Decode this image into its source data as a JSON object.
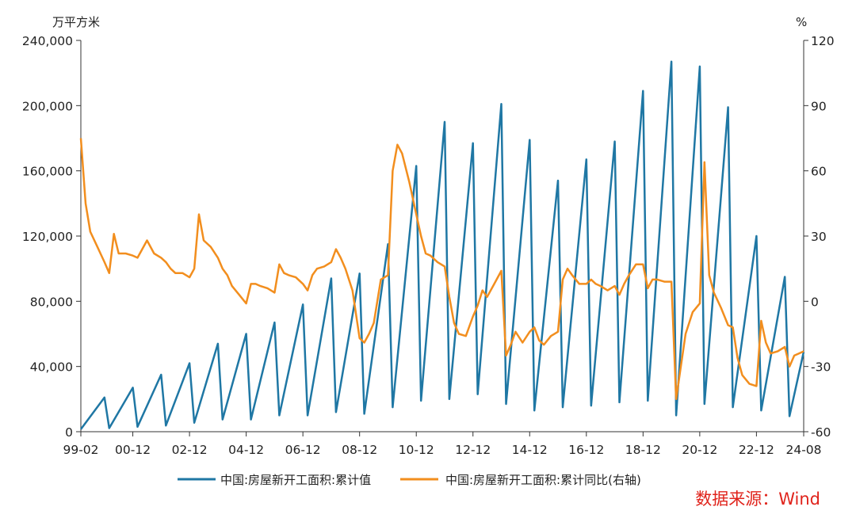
{
  "chart_data": {
    "type": "line",
    "left_unit": "万平方米",
    "right_unit": "%",
    "x_tick_labels": [
      "99-02",
      "00-12",
      "02-12",
      "04-12",
      "06-12",
      "08-12",
      "10-12",
      "12-12",
      "14-12",
      "16-12",
      "18-12",
      "20-12",
      "22-12",
      "24-08"
    ],
    "y_left": {
      "ticks": [
        0,
        40000,
        80000,
        120000,
        160000,
        200000,
        240000
      ],
      "tick_labels": [
        "0",
        "40,000",
        "80,000",
        "120,000",
        "160,000",
        "200,000",
        "240,000"
      ],
      "lim": [
        0,
        240000
      ]
    },
    "y_right": {
      "ticks": [
        -60,
        -30,
        0,
        30,
        60,
        90,
        120
      ],
      "tick_labels": [
        "-60",
        "-30",
        "0",
        "30",
        "60",
        "90",
        "120"
      ],
      "lim": [
        -60,
        120
      ]
    },
    "series": [
      {
        "name": "中国:房屋新开工面积:累计值",
        "axis": "left",
        "color": "#1f77a4",
        "points": [
          [
            "1999-02",
            1500
          ],
          [
            "1999-12",
            21000
          ],
          [
            "2000-02",
            2200
          ],
          [
            "2000-12",
            27000
          ],
          [
            "2001-02",
            3000
          ],
          [
            "2001-12",
            35000
          ],
          [
            "2002-02",
            3800
          ],
          [
            "2002-12",
            42000
          ],
          [
            "2003-02",
            5500
          ],
          [
            "2003-12",
            54000
          ],
          [
            "2004-02",
            7500
          ],
          [
            "2004-12",
            60000
          ],
          [
            "2005-02",
            7500
          ],
          [
            "2005-12",
            67000
          ],
          [
            "2006-02",
            10000
          ],
          [
            "2006-12",
            78000
          ],
          [
            "2007-02",
            10000
          ],
          [
            "2007-12",
            94000
          ],
          [
            "2008-02",
            12000
          ],
          [
            "2008-12",
            97000
          ],
          [
            "2009-02",
            11000
          ],
          [
            "2009-12",
            115000
          ],
          [
            "2010-02",
            15000
          ],
          [
            "2010-12",
            163000
          ],
          [
            "2011-02",
            19000
          ],
          [
            "2011-12",
            190000
          ],
          [
            "2012-02",
            20000
          ],
          [
            "2012-12",
            177000
          ],
          [
            "2013-02",
            23000
          ],
          [
            "2013-12",
            201000
          ],
          [
            "2014-02",
            17000
          ],
          [
            "2014-12",
            179000
          ],
          [
            "2015-02",
            13000
          ],
          [
            "2015-12",
            154000
          ],
          [
            "2016-02",
            15000
          ],
          [
            "2016-12",
            167000
          ],
          [
            "2017-02",
            16000
          ],
          [
            "2017-12",
            178000
          ],
          [
            "2018-02",
            18000
          ],
          [
            "2018-12",
            209000
          ],
          [
            "2019-02",
            19000
          ],
          [
            "2019-12",
            227000
          ],
          [
            "2020-02",
            10000
          ],
          [
            "2020-12",
            224000
          ],
          [
            "2021-02",
            17000
          ],
          [
            "2021-12",
            199000
          ],
          [
            "2022-02",
            15000
          ],
          [
            "2022-12",
            120000
          ],
          [
            "2023-02",
            13000
          ],
          [
            "2023-12",
            95000
          ],
          [
            "2024-02",
            9500
          ],
          [
            "2024-08",
            49000
          ]
        ]
      },
      {
        "name": "中国:房屋新开工面积:累计同比(右轴)",
        "axis": "right",
        "color": "#f28e1e",
        "points": [
          [
            "1999-02",
            75
          ],
          [
            "1999-04",
            45
          ],
          [
            "1999-06",
            32
          ],
          [
            "1999-09",
            25
          ],
          [
            "1999-12",
            18
          ],
          [
            "2000-02",
            13
          ],
          [
            "2000-04",
            31
          ],
          [
            "2000-06",
            22
          ],
          [
            "2000-09",
            22
          ],
          [
            "2000-12",
            21
          ],
          [
            "2001-02",
            20
          ],
          [
            "2001-04",
            24
          ],
          [
            "2001-06",
            28
          ],
          [
            "2001-09",
            22
          ],
          [
            "2001-12",
            20
          ],
          [
            "2002-02",
            18
          ],
          [
            "2002-04",
            15
          ],
          [
            "2002-06",
            13
          ],
          [
            "2002-09",
            13
          ],
          [
            "2002-12",
            11
          ],
          [
            "2003-02",
            15
          ],
          [
            "2003-04",
            40
          ],
          [
            "2003-06",
            28
          ],
          [
            "2003-09",
            25
          ],
          [
            "2003-12",
            20
          ],
          [
            "2004-02",
            15
          ],
          [
            "2004-04",
            12
          ],
          [
            "2004-06",
            7
          ],
          [
            "2004-09",
            3
          ],
          [
            "2004-12",
            -1
          ],
          [
            "2005-02",
            8
          ],
          [
            "2005-04",
            8
          ],
          [
            "2005-06",
            7
          ],
          [
            "2005-09",
            6
          ],
          [
            "2005-12",
            4
          ],
          [
            "2006-02",
            17
          ],
          [
            "2006-04",
            13
          ],
          [
            "2006-06",
            12
          ],
          [
            "2006-09",
            11
          ],
          [
            "2006-12",
            8
          ],
          [
            "2007-02",
            5
          ],
          [
            "2007-04",
            12
          ],
          [
            "2007-06",
            15
          ],
          [
            "2007-09",
            16
          ],
          [
            "2007-12",
            18
          ],
          [
            "2008-02",
            24
          ],
          [
            "2008-04",
            20
          ],
          [
            "2008-06",
            15
          ],
          [
            "2008-09",
            5
          ],
          [
            "2008-12",
            -17
          ],
          [
            "2009-02",
            -19
          ],
          [
            "2009-04",
            -15
          ],
          [
            "2009-06",
            -10
          ],
          [
            "2009-09",
            10
          ],
          [
            "2009-12",
            12
          ],
          [
            "2010-02",
            60
          ],
          [
            "2010-04",
            72
          ],
          [
            "2010-06",
            68
          ],
          [
            "2010-09",
            55
          ],
          [
            "2010-12",
            40
          ],
          [
            "2011-02",
            30
          ],
          [
            "2011-04",
            22
          ],
          [
            "2011-06",
            21
          ],
          [
            "2011-09",
            18
          ],
          [
            "2011-12",
            16
          ],
          [
            "2012-02",
            2
          ],
          [
            "2012-04",
            -10
          ],
          [
            "2012-06",
            -15
          ],
          [
            "2012-09",
            -16
          ],
          [
            "2012-12",
            -7
          ],
          [
            "2013-02",
            -2
          ],
          [
            "2013-04",
            5
          ],
          [
            "2013-06",
            2
          ],
          [
            "2013-09",
            8
          ],
          [
            "2013-12",
            14
          ],
          [
            "2014-02",
            -25
          ],
          [
            "2014-04",
            -20
          ],
          [
            "2014-06",
            -14
          ],
          [
            "2014-09",
            -19
          ],
          [
            "2014-12",
            -14
          ],
          [
            "2015-02",
            -12
          ],
          [
            "2015-04",
            -18
          ],
          [
            "2015-06",
            -20
          ],
          [
            "2015-09",
            -16
          ],
          [
            "2015-12",
            -14
          ],
          [
            "2016-02",
            10
          ],
          [
            "2016-04",
            15
          ],
          [
            "2016-06",
            12
          ],
          [
            "2016-09",
            8
          ],
          [
            "2016-12",
            8
          ],
          [
            "2017-02",
            10
          ],
          [
            "2017-04",
            8
          ],
          [
            "2017-06",
            7
          ],
          [
            "2017-09",
            5
          ],
          [
            "2017-12",
            7
          ],
          [
            "2018-02",
            3
          ],
          [
            "2018-04",
            8
          ],
          [
            "2018-06",
            12
          ],
          [
            "2018-09",
            17
          ],
          [
            "2018-12",
            17
          ],
          [
            "2019-02",
            6
          ],
          [
            "2019-04",
            10
          ],
          [
            "2019-06",
            10
          ],
          [
            "2019-09",
            9
          ],
          [
            "2019-12",
            9
          ],
          [
            "2020-02",
            -45
          ],
          [
            "2020-04",
            -30
          ],
          [
            "2020-06",
            -15
          ],
          [
            "2020-09",
            -5
          ],
          [
            "2020-12",
            -1
          ],
          [
            "2021-02",
            64
          ],
          [
            "2021-04",
            12
          ],
          [
            "2021-06",
            4
          ],
          [
            "2021-09",
            -3
          ],
          [
            "2021-12",
            -11
          ],
          [
            "2022-02",
            -12
          ],
          [
            "2022-04",
            -26
          ],
          [
            "2022-06",
            -34
          ],
          [
            "2022-09",
            -38
          ],
          [
            "2022-12",
            -39
          ],
          [
            "2023-02",
            -9
          ],
          [
            "2023-04",
            -19
          ],
          [
            "2023-06",
            -24
          ],
          [
            "2023-09",
            -23
          ],
          [
            "2023-12",
            -21
          ],
          [
            "2024-02",
            -30
          ],
          [
            "2024-04",
            -25
          ],
          [
            "2024-06",
            -24
          ],
          [
            "2024-08",
            -23
          ]
        ]
      }
    ],
    "grid": false,
    "legend_position": "bottom"
  },
  "source_text": "数据来源：Wind"
}
